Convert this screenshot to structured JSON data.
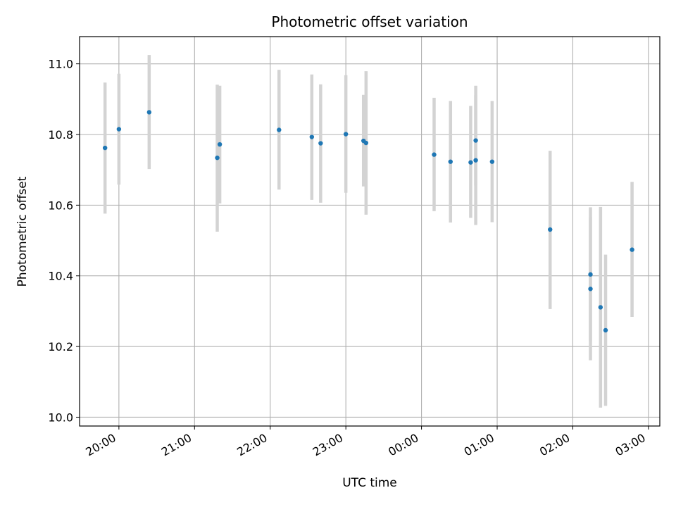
{
  "chart_data": {
    "type": "scatter",
    "title": "Photometric offset variation",
    "xlabel": "UTC time",
    "ylabel": "Photometric offset",
    "x_ticks": [
      "20:00",
      "21:00",
      "22:00",
      "23:00",
      "00:00",
      "01:00",
      "02:00",
      "03:00"
    ],
    "y_ticks": [
      "10.0",
      "10.2",
      "10.4",
      "10.6",
      "10.8",
      "11.0"
    ],
    "x_range_hours_from_2000": [
      -0.52,
      7.15
    ],
    "ylim": [
      9.975,
      11.077
    ],
    "grid": true,
    "series": [
      {
        "name": "",
        "color": "#1f77b4",
        "errorbar_color": "#d3d3d3",
        "points": [
          {
            "t": "19:49",
            "y": 10.762,
            "lo": 10.576,
            "hi": 10.947
          },
          {
            "t": "20:00",
            "y": 10.815,
            "lo": 10.658,
            "hi": 10.972
          },
          {
            "t": "20:24",
            "y": 10.863,
            "lo": 10.702,
            "hi": 11.025
          },
          {
            "t": "21:18",
            "y": 10.734,
            "lo": 10.525,
            "hi": 10.941
          },
          {
            "t": "21:20",
            "y": 10.772,
            "lo": 10.605,
            "hi": 10.938
          },
          {
            "t": "22:07",
            "y": 10.813,
            "lo": 10.644,
            "hi": 10.983
          },
          {
            "t": "22:33",
            "y": 10.793,
            "lo": 10.615,
            "hi": 10.97
          },
          {
            "t": "22:40",
            "y": 10.775,
            "lo": 10.607,
            "hi": 10.942
          },
          {
            "t": "23:00",
            "y": 10.801,
            "lo": 10.635,
            "hi": 10.968
          },
          {
            "t": "23:14",
            "y": 10.782,
            "lo": 10.653,
            "hi": 10.912
          },
          {
            "t": "23:16",
            "y": 10.776,
            "lo": 10.573,
            "hi": 10.979
          },
          {
            "t": "00:10",
            "y": 10.743,
            "lo": 10.583,
            "hi": 10.904
          },
          {
            "t": "00:23",
            "y": 10.723,
            "lo": 10.551,
            "hi": 10.895
          },
          {
            "t": "00:39",
            "y": 10.721,
            "lo": 10.564,
            "hi": 10.881
          },
          {
            "t": "00:43",
            "y": 10.783,
            "lo": 10.656,
            "hi": 10.911
          },
          {
            "t": "00:43",
            "y": 10.727,
            "lo": 10.544,
            "hi": 10.938
          },
          {
            "t": "00:56",
            "y": 10.723,
            "lo": 10.552,
            "hi": 10.895
          },
          {
            "t": "01:42",
            "y": 10.531,
            "lo": 10.306,
            "hi": 10.754
          },
          {
            "t": "02:14",
            "y": 10.404,
            "lo": 10.215,
            "hi": 10.594
          },
          {
            "t": "02:14",
            "y": 10.363,
            "lo": 10.161,
            "hi": 10.566
          },
          {
            "t": "02:22",
            "y": 10.311,
            "lo": 10.027,
            "hi": 10.595
          },
          {
            "t": "02:26",
            "y": 10.246,
            "lo": 10.032,
            "hi": 10.46
          },
          {
            "t": "02:47",
            "y": 10.474,
            "lo": 10.284,
            "hi": 10.666
          }
        ]
      }
    ]
  }
}
